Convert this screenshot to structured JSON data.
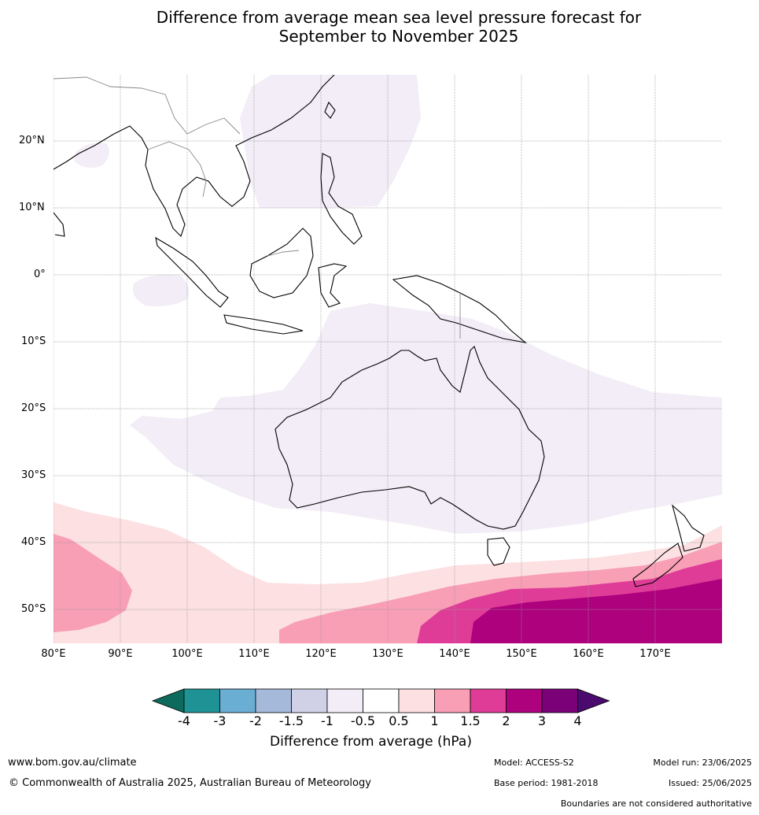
{
  "title_line1": "Difference from average mean sea level pressure forecast for",
  "title_line2": "September to November 2025",
  "lat_labels": [
    "20°N",
    "10°N",
    "0°",
    "10°S",
    "20°S",
    "30°S",
    "40°S",
    "50°S"
  ],
  "lon_labels": [
    "80°E",
    "90°E",
    "100°E",
    "110°E",
    "120°E",
    "130°E",
    "140°E",
    "150°E",
    "160°E",
    "170°E"
  ],
  "legend": {
    "title": "Difference from average (hPa)",
    "ticks": [
      "-4",
      "-3",
      "-2",
      "-1.5",
      "-1",
      "-0.5",
      "0.5",
      "1",
      "1.5",
      "2",
      "3",
      "4"
    ],
    "colors": [
      "#0c6b5d",
      "#1f9296",
      "#6aaed3",
      "#a5b9db",
      "#d0d1e6",
      "#f2edf6",
      "#ffffff",
      "#fde0e1",
      "#f89eb5",
      "#df3c98",
      "#ad017e",
      "#7a0177",
      "#4a0a6e"
    ]
  },
  "footer": {
    "website": "www.bom.gov.au/climate",
    "copyright": "© Commonwealth of Australia 2025, Australian Bureau of Meteorology",
    "model": "Model: ACCESS-S2",
    "model_run": "Model run: 23/06/2025",
    "base_period": "Base period: 1981-2018",
    "issued": "Issued: 25/06/2025",
    "disclaimer": "Boundaries are not considered authoritative"
  }
}
